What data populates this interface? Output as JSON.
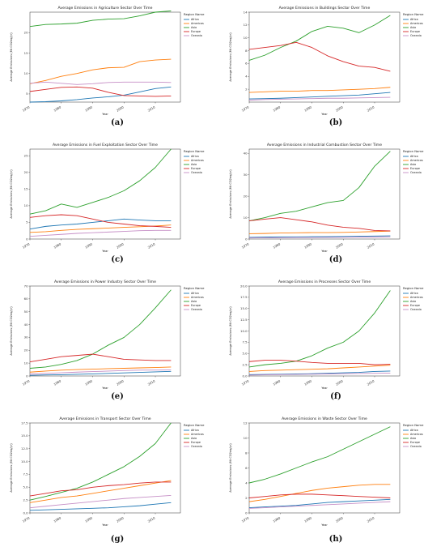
{
  "colors": {
    "Africa": "#1f77b4",
    "Americas": "#ff7f0e",
    "Asia": "#2ca02c",
    "Europe": "#d62728",
    "Oceania": "#c68fc6"
  },
  "chart_data": [
    {
      "type": "line",
      "title": "Average Emissions in Agriculture Sector Over Time",
      "xlabel": "Year",
      "ylabel": "Average Emissions (Mt CO2eq/yr)",
      "legend_title": "Region Name",
      "legend": "right",
      "xlim": [
        1970,
        2018
      ],
      "ylim": [
        3,
        25
      ],
      "xticks": [
        "1970",
        "1980",
        "1990",
        "2000",
        "2010"
      ],
      "yticks": [
        "5",
        "10",
        "15",
        "20"
      ],
      "x": [
        1970,
        1975,
        1980,
        1985,
        1990,
        1995,
        2000,
        2005,
        2010,
        2015
      ],
      "series": [
        {
          "name": "Africa",
          "values": [
            3.0,
            3.1,
            3.3,
            3.6,
            4.0,
            4.3,
            4.7,
            5.5,
            6.3,
            6.7
          ]
        },
        {
          "name": "Americas",
          "values": [
            7.5,
            8.3,
            9.3,
            10.0,
            10.9,
            11.4,
            11.5,
            12.9,
            13.3,
            13.5
          ]
        },
        {
          "name": "Asia",
          "values": [
            21.5,
            22.0,
            22.1,
            22.3,
            23.0,
            23.3,
            23.4,
            24.1,
            25.0,
            25.3
          ]
        },
        {
          "name": "Europe",
          "values": [
            5.6,
            6.1,
            6.6,
            6.7,
            6.4,
            5.4,
            4.6,
            4.5,
            4.4,
            4.5
          ]
        },
        {
          "name": "Oceania",
          "values": [
            7.6,
            7.9,
            7.6,
            7.3,
            7.5,
            7.8,
            7.9,
            7.9,
            7.9,
            7.8
          ]
        }
      ]
    },
    {
      "type": "line",
      "title": "Average Emissions in Buildings Sector Over Time",
      "xlabel": "Year",
      "ylabel": "Average Emissions (Mt CO2eq/yr)",
      "legend_title": "Region Name",
      "legend": "right",
      "xlim": [
        1970,
        2018
      ],
      "ylim": [
        0,
        14
      ],
      "xticks": [
        "1970",
        "1980",
        "1990",
        "2000",
        "2010"
      ],
      "yticks": [
        "2",
        "4",
        "6",
        "8",
        "10",
        "12",
        "14"
      ],
      "x": [
        1970,
        1975,
        1980,
        1985,
        1990,
        1995,
        2000,
        2005,
        2010,
        2015
      ],
      "series": [
        {
          "name": "Africa",
          "values": [
            0.5,
            0.55,
            0.6,
            0.7,
            0.8,
            0.9,
            1.0,
            1.1,
            1.3,
            1.5
          ]
        },
        {
          "name": "Americas",
          "values": [
            1.5,
            1.6,
            1.7,
            1.7,
            1.8,
            1.8,
            1.9,
            2.0,
            2.1,
            2.3
          ]
        },
        {
          "name": "Asia",
          "values": [
            6.5,
            7.3,
            8.5,
            9.5,
            11.0,
            11.8,
            11.5,
            10.8,
            12.0,
            13.5
          ]
        },
        {
          "name": "Europe",
          "values": [
            8.2,
            8.5,
            8.8,
            9.3,
            8.5,
            7.2,
            6.3,
            5.6,
            5.4,
            4.8
          ]
        },
        {
          "name": "Oceania",
          "values": [
            0.3,
            0.4,
            0.45,
            0.5,
            0.55,
            0.6,
            0.6,
            0.65,
            0.7,
            0.75
          ]
        }
      ]
    },
    {
      "type": "line",
      "title": "Average Emissions in Fuel Exploitation Sector Over Time",
      "xlabel": "Year",
      "ylabel": "Average Emissions (Mt CO2eq/yr)",
      "legend_title": "Region Name",
      "legend": "right",
      "xlim": [
        1970,
        2018
      ],
      "ylim": [
        0,
        27
      ],
      "xticks": [
        "1970",
        "1980",
        "1990",
        "2000",
        "2010"
      ],
      "yticks": [
        "0",
        "5",
        "10",
        "15",
        "20",
        "25"
      ],
      "x": [
        1970,
        1975,
        1980,
        1985,
        1990,
        1995,
        2000,
        2005,
        2010,
        2015
      ],
      "series": [
        {
          "name": "Africa",
          "values": [
            3.0,
            3.8,
            4.2,
            4.5,
            5.0,
            5.5,
            6.0,
            5.7,
            5.5,
            5.5
          ]
        },
        {
          "name": "Americas",
          "values": [
            2.0,
            2.2,
            2.6,
            2.9,
            3.1,
            3.3,
            3.5,
            3.7,
            3.9,
            4.2
          ]
        },
        {
          "name": "Asia",
          "values": [
            7.5,
            8.5,
            10.5,
            9.5,
            11.0,
            12.5,
            14.5,
            17.5,
            21.5,
            27.0
          ]
        },
        {
          "name": "Europe",
          "values": [
            6.5,
            7.0,
            7.3,
            7.0,
            6.0,
            5.0,
            4.5,
            4.0,
            3.8,
            3.5
          ]
        },
        {
          "name": "Oceania",
          "values": [
            0.8,
            1.1,
            1.4,
            1.7,
            1.9,
            2.1,
            2.3,
            2.5,
            2.6,
            2.6
          ]
        }
      ]
    },
    {
      "type": "line",
      "title": "Average Emissions in Industrial Combustion Sector Over Time",
      "xlabel": "Year",
      "ylabel": "Average Emissions (Mt CO2eq/yr)",
      "legend_title": "Region Name",
      "legend": "right",
      "xlim": [
        1970,
        2018
      ],
      "ylim": [
        0,
        42
      ],
      "xticks": [
        "1970",
        "1980",
        "1990",
        "2000",
        "2010"
      ],
      "yticks": [
        "0",
        "10",
        "20",
        "30",
        "40"
      ],
      "x": [
        1970,
        1975,
        1980,
        1985,
        1990,
        1995,
        2000,
        2005,
        2010,
        2015
      ],
      "series": [
        {
          "name": "Africa",
          "values": [
            0.8,
            0.9,
            1.0,
            1.0,
            1.1,
            1.1,
            1.2,
            1.3,
            1.4,
            1.5
          ]
        },
        {
          "name": "Americas",
          "values": [
            2.5,
            2.6,
            2.8,
            2.9,
            3.0,
            3.0,
            3.1,
            3.3,
            3.5,
            3.7
          ]
        },
        {
          "name": "Asia",
          "values": [
            8.5,
            10.0,
            12.0,
            13.0,
            15.0,
            17.0,
            18.0,
            24.0,
            34.0,
            41.0
          ]
        },
        {
          "name": "Europe",
          "values": [
            8.5,
            9.3,
            10.0,
            9.0,
            8.0,
            6.5,
            5.5,
            5.0,
            4.0,
            3.8
          ]
        },
        {
          "name": "Oceania",
          "values": [
            0.5,
            0.6,
            0.6,
            0.7,
            0.7,
            0.8,
            0.8,
            0.9,
            0.9,
            1.0
          ]
        }
      ]
    },
    {
      "type": "line",
      "title": "Average Emissions in Power Industry Sector Over Time",
      "xlabel": "Year",
      "ylabel": "Average Emissions (Mt CO2eq/yr)",
      "legend_title": "Region Name",
      "legend": "right",
      "xlim": [
        1970,
        2018
      ],
      "ylim": [
        0,
        70
      ],
      "xticks": [
        "1970",
        "1980",
        "1990",
        "2000",
        "2010"
      ],
      "yticks": [
        "0",
        "10",
        "20",
        "30",
        "40",
        "50",
        "60",
        "70"
      ],
      "x": [
        1970,
        1975,
        1980,
        1985,
        1990,
        1995,
        2000,
        2005,
        2010,
        2015
      ],
      "series": [
        {
          "name": "Africa",
          "values": [
            0.5,
            0.8,
            1.0,
            1.3,
            1.6,
            2.0,
            2.4,
            2.8,
            3.2,
            3.6
          ]
        },
        {
          "name": "Americas",
          "values": [
            3.0,
            3.8,
            4.5,
            5.0,
            5.3,
            5.7,
            6.0,
            6.3,
            6.6,
            7.0
          ]
        },
        {
          "name": "Asia",
          "values": [
            6.0,
            7.0,
            9.0,
            12.0,
            17.0,
            24.0,
            30.0,
            40.0,
            53.0,
            67.0
          ]
        },
        {
          "name": "Europe",
          "values": [
            11.0,
            13.0,
            15.0,
            16.0,
            17.0,
            15.0,
            13.0,
            12.5,
            12.0,
            12.0
          ]
        },
        {
          "name": "Oceania",
          "values": [
            1.5,
            2.0,
            2.5,
            3.0,
            3.4,
            3.8,
            4.2,
            4.5,
            4.6,
            4.7
          ]
        }
      ]
    },
    {
      "type": "line",
      "title": "Average Emissions in Processes Sector Over Time",
      "xlabel": "Year",
      "ylabel": "Average Emissions (Mt CO2eq/yr)",
      "legend_title": "Region Name",
      "legend": "right",
      "xlim": [
        1970,
        2018
      ],
      "ylim": [
        0,
        20
      ],
      "xticks": [
        "1970",
        "1980",
        "1990",
        "2000",
        "2010"
      ],
      "yticks": [
        "0.0",
        "2.5",
        "5.0",
        "7.5",
        "10.0",
        "12.5",
        "15.0",
        "17.5",
        "20.0"
      ],
      "x": [
        1970,
        1975,
        1980,
        1985,
        1990,
        1995,
        2000,
        2005,
        2010,
        2015
      ],
      "series": [
        {
          "name": "Africa",
          "values": [
            0.3,
            0.35,
            0.4,
            0.45,
            0.5,
            0.6,
            0.7,
            0.8,
            1.0,
            1.1
          ]
        },
        {
          "name": "Americas",
          "values": [
            1.0,
            1.2,
            1.3,
            1.4,
            1.5,
            1.6,
            1.8,
            2.0,
            2.2,
            2.4
          ]
        },
        {
          "name": "Asia",
          "values": [
            2.0,
            2.5,
            2.8,
            3.3,
            4.5,
            6.2,
            7.5,
            10.0,
            14.0,
            19.0
          ]
        },
        {
          "name": "Europe",
          "values": [
            3.2,
            3.5,
            3.5,
            3.3,
            3.0,
            2.8,
            2.8,
            2.8,
            2.5,
            2.6
          ]
        },
        {
          "name": "Oceania",
          "values": [
            0.2,
            0.25,
            0.3,
            0.35,
            0.4,
            0.45,
            0.5,
            0.55,
            0.6,
            0.65
          ]
        }
      ]
    },
    {
      "type": "line",
      "title": "Average Emissions in Transport Sector Over Time",
      "xlabel": "Year",
      "ylabel": "Average Emissions (Mt CO2eq/yr)",
      "legend_title": "Region Name",
      "legend": "right",
      "xlim": [
        1970,
        2018
      ],
      "ylim": [
        0,
        17.5
      ],
      "xticks": [
        "1970",
        "1980",
        "1990",
        "2000",
        "2010"
      ],
      "yticks": [
        "0.0",
        "2.5",
        "5.0",
        "7.5",
        "10.0",
        "12.5",
        "15.0",
        "17.5"
      ],
      "x": [
        1970,
        1975,
        1980,
        1985,
        1990,
        1995,
        2000,
        2005,
        2010,
        2015
      ],
      "series": [
        {
          "name": "Africa",
          "values": [
            0.5,
            0.6,
            0.7,
            0.8,
            0.9,
            1.0,
            1.2,
            1.4,
            1.7,
            2.0
          ]
        },
        {
          "name": "Americas",
          "values": [
            2.0,
            2.5,
            3.0,
            3.3,
            3.8,
            4.3,
            4.8,
            5.3,
            5.8,
            6.3
          ]
        },
        {
          "name": "Asia",
          "values": [
            2.5,
            3.2,
            4.0,
            4.8,
            6.0,
            7.5,
            9.0,
            11.0,
            13.5,
            17.5
          ]
        },
        {
          "name": "Europe",
          "values": [
            3.3,
            3.8,
            4.3,
            4.5,
            5.0,
            5.3,
            5.5,
            5.8,
            6.0,
            6.0
          ]
        },
        {
          "name": "Oceania",
          "values": [
            1.0,
            1.3,
            1.6,
            1.9,
            2.2,
            2.5,
            2.8,
            3.0,
            3.2,
            3.4
          ]
        }
      ]
    },
    {
      "type": "line",
      "title": "Average Emissions in Waste Sector Over Time",
      "xlabel": "Year",
      "ylabel": "Average Emissions (Mt CO2eq/yr)",
      "legend_title": "Region Name",
      "legend": "right",
      "xlim": [
        1970,
        2018
      ],
      "ylim": [
        0,
        12
      ],
      "xticks": [
        "1970",
        "1980",
        "1990",
        "2000",
        "2010"
      ],
      "yticks": [
        "0",
        "2",
        "4",
        "6",
        "8",
        "10",
        "12"
      ],
      "x": [
        1970,
        1975,
        1980,
        1985,
        1990,
        1995,
        2000,
        2005,
        2010,
        2015
      ],
      "series": [
        {
          "name": "Africa",
          "values": [
            0.7,
            0.8,
            0.9,
            1.0,
            1.2,
            1.4,
            1.5,
            1.6,
            1.7,
            1.8
          ]
        },
        {
          "name": "Americas",
          "values": [
            1.5,
            1.8,
            2.2,
            2.6,
            3.0,
            3.3,
            3.5,
            3.7,
            3.8,
            3.8
          ]
        },
        {
          "name": "Asia",
          "values": [
            4.0,
            4.5,
            5.2,
            6.0,
            6.8,
            7.5,
            8.5,
            9.5,
            10.5,
            11.5
          ]
        },
        {
          "name": "Europe",
          "values": [
            2.0,
            2.2,
            2.4,
            2.5,
            2.5,
            2.4,
            2.3,
            2.2,
            2.1,
            2.0
          ]
        },
        {
          "name": "Oceania",
          "values": [
            0.6,
            0.7,
            0.8,
            0.9,
            1.0,
            1.1,
            1.2,
            1.3,
            1.4,
            1.5
          ]
        }
      ]
    }
  ],
  "captions": [
    "(a)",
    "(b)",
    "(c)",
    "(d)",
    "(e)",
    "(f)",
    "(g)",
    "(h)"
  ]
}
